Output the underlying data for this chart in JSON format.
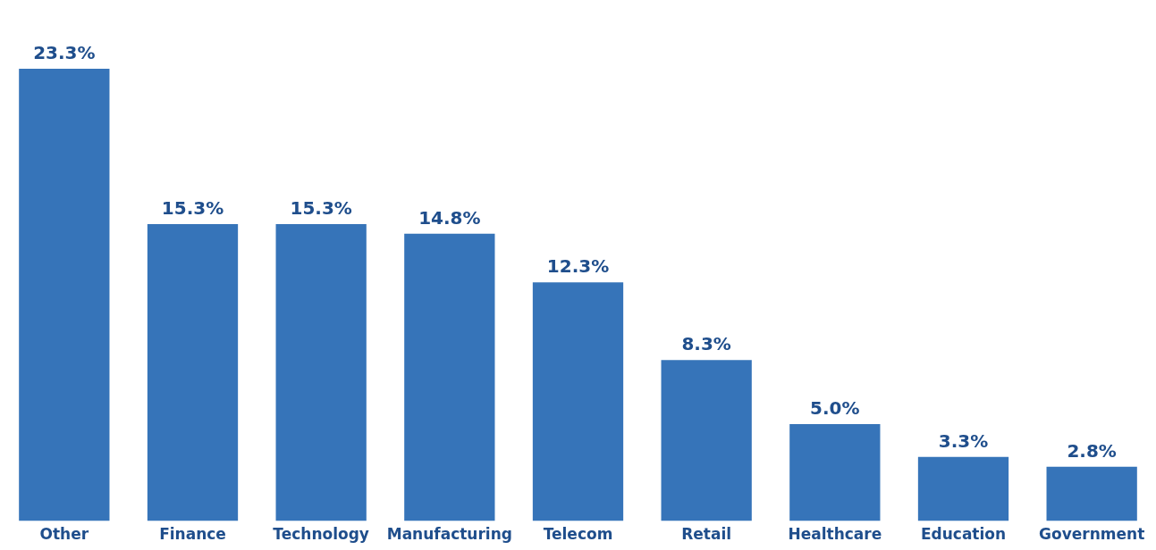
{
  "chart_data": {
    "type": "bar",
    "categories": [
      "Other",
      "Finance",
      "Technology",
      "Manufacturing",
      "Telecom",
      "Retail",
      "Healthcare",
      "Education",
      "Government"
    ],
    "values": [
      23.3,
      15.3,
      15.3,
      14.8,
      12.3,
      8.3,
      5.0,
      3.3,
      2.8
    ],
    "value_labels": [
      "23.3%",
      "15.3%",
      "15.3%",
      "14.8%",
      "12.3%",
      "8.3%",
      "5.0%",
      "3.3%",
      "2.8%"
    ],
    "color": "#3674b9",
    "grid": false,
    "legend": false
  }
}
